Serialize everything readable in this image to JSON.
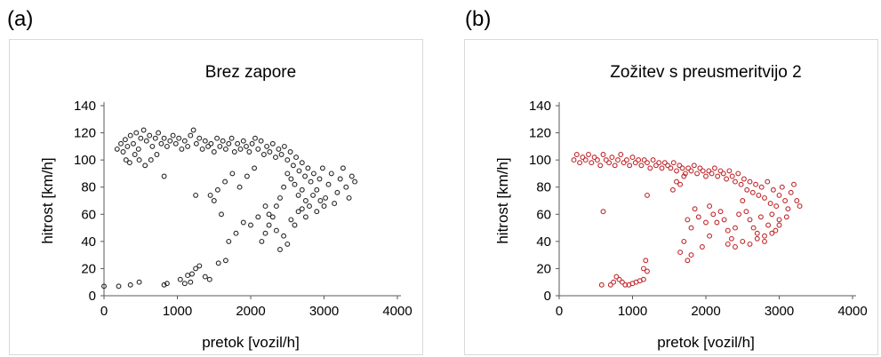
{
  "panels": [
    {
      "letter": "(a)"
    },
    {
      "letter": "(b)"
    }
  ],
  "chart_data": [
    {
      "type": "scatter",
      "title": "Brez zapore",
      "xlabel": "pretok [vozil/h]",
      "ylabel": "hitrost [km/h]",
      "xlim": [
        0,
        4000
      ],
      "ylim": [
        0,
        140
      ],
      "xticks": [
        0,
        1000,
        2000,
        3000,
        4000
      ],
      "yticks": [
        0,
        20,
        40,
        60,
        80,
        100,
        120,
        140
      ],
      "grid": false,
      "color": "#262626",
      "points": [
        [
          180,
          108
        ],
        [
          230,
          112
        ],
        [
          260,
          106
        ],
        [
          290,
          115
        ],
        [
          320,
          110
        ],
        [
          360,
          118
        ],
        [
          400,
          112
        ],
        [
          440,
          120
        ],
        [
          470,
          108
        ],
        [
          500,
          116
        ],
        [
          540,
          122
        ],
        [
          580,
          114
        ],
        [
          620,
          118
        ],
        [
          660,
          110
        ],
        [
          700,
          116
        ],
        [
          740,
          120
        ],
        [
          780,
          112
        ],
        [
          820,
          116
        ],
        [
          860,
          110
        ],
        [
          900,
          114
        ],
        [
          940,
          118
        ],
        [
          980,
          112
        ],
        [
          1020,
          116
        ],
        [
          1060,
          108
        ],
        [
          1100,
          114
        ],
        [
          1140,
          110
        ],
        [
          1180,
          118
        ],
        [
          1220,
          122
        ],
        [
          1260,
          112
        ],
        [
          1300,
          116
        ],
        [
          1340,
          108
        ],
        [
          1380,
          114
        ],
        [
          1420,
          110
        ],
        [
          1460,
          112
        ],
        [
          1500,
          106
        ],
        [
          1540,
          116
        ],
        [
          1580,
          110
        ],
        [
          1620,
          114
        ],
        [
          1660,
          108
        ],
        [
          1700,
          112
        ],
        [
          1740,
          116
        ],
        [
          1780,
          106
        ],
        [
          1820,
          112
        ],
        [
          1860,
          108
        ],
        [
          1900,
          114
        ],
        [
          1940,
          110
        ],
        [
          1980,
          106
        ],
        [
          2020,
          112
        ],
        [
          2060,
          116
        ],
        [
          2100,
          108
        ],
        [
          2140,
          114
        ],
        [
          2180,
          104
        ],
        [
          2220,
          110
        ],
        [
          2260,
          106
        ],
        [
          2300,
          112
        ],
        [
          2340,
          102
        ],
        [
          2380,
          108
        ],
        [
          2420,
          104
        ],
        [
          2460,
          110
        ],
        [
          2500,
          100
        ],
        [
          2540,
          106
        ],
        [
          2580,
          96
        ],
        [
          2620,
          102
        ],
        [
          2660,
          92
        ],
        [
          2700,
          98
        ],
        [
          2740,
          88
        ],
        [
          2780,
          94
        ],
        [
          2820,
          84
        ],
        [
          2860,
          90
        ],
        [
          2900,
          78
        ],
        [
          2940,
          86
        ],
        [
          2980,
          94
        ],
        [
          3020,
          72
        ],
        [
          3060,
          82
        ],
        [
          3100,
          90
        ],
        [
          3140,
          68
        ],
        [
          3180,
          76
        ],
        [
          3220,
          86
        ],
        [
          3260,
          94
        ],
        [
          3300,
          80
        ],
        [
          3340,
          72
        ],
        [
          3380,
          88
        ],
        [
          3420,
          84
        ],
        [
          2700,
          78
        ],
        [
          2750,
          70
        ],
        [
          2800,
          66
        ],
        [
          2850,
          74
        ],
        [
          2900,
          62
        ],
        [
          2950,
          70
        ],
        [
          3000,
          66
        ],
        [
          2600,
          82
        ],
        [
          2650,
          74
        ],
        [
          2550,
          86
        ],
        [
          2500,
          90
        ],
        [
          2450,
          80
        ],
        [
          2400,
          72
        ],
        [
          2350,
          66
        ],
        [
          2300,
          58
        ],
        [
          2250,
          52
        ],
        [
          2200,
          46
        ],
        [
          2150,
          40
        ],
        [
          2250,
          60
        ],
        [
          2350,
          48
        ],
        [
          2450,
          44
        ],
        [
          2550,
          56
        ],
        [
          2650,
          62
        ],
        [
          2750,
          58
        ],
        [
          2500,
          38
        ],
        [
          2400,
          34
        ],
        [
          2600,
          52
        ],
        [
          2700,
          64
        ],
        [
          2200,
          66
        ],
        [
          2100,
          58
        ],
        [
          2000,
          52
        ],
        [
          1900,
          54
        ],
        [
          1800,
          46
        ],
        [
          1700,
          40
        ],
        [
          1600,
          60
        ],
        [
          1500,
          70
        ],
        [
          1450,
          74
        ],
        [
          1650,
          84
        ],
        [
          1750,
          90
        ],
        [
          1850,
          80
        ],
        [
          1950,
          88
        ],
        [
          2050,
          94
        ],
        [
          1550,
          78
        ],
        [
          1250,
          74
        ],
        [
          820,
          88
        ],
        [
          300,
          100
        ],
        [
          350,
          98
        ],
        [
          420,
          104
        ],
        [
          480,
          100
        ],
        [
          560,
          96
        ],
        [
          640,
          100
        ],
        [
          720,
          104
        ],
        [
          0,
          7
        ],
        [
          200,
          7
        ],
        [
          360,
          8
        ],
        [
          480,
          10
        ],
        [
          820,
          8
        ],
        [
          860,
          9
        ],
        [
          1040,
          12
        ],
        [
          1100,
          9
        ],
        [
          1140,
          15
        ],
        [
          1200,
          16
        ],
        [
          1250,
          20
        ],
        [
          1300,
          22
        ],
        [
          1380,
          14
        ],
        [
          1440,
          12
        ],
        [
          1560,
          24
        ],
        [
          1660,
          26
        ],
        [
          1180,
          10
        ]
      ]
    },
    {
      "type": "scatter",
      "title": "Zožitev s preusmeritvijo 2",
      "xlabel": "pretok [vozil/h]",
      "ylabel": "hitrost [km/h]",
      "xlim": [
        0,
        4000
      ],
      "ylim": [
        0,
        140
      ],
      "xticks": [
        0,
        1000,
        2000,
        3000,
        4000
      ],
      "yticks": [
        0,
        20,
        40,
        60,
        80,
        100,
        120,
        140
      ],
      "grid": false,
      "color": "#c0282c",
      "points": [
        [
          200,
          100
        ],
        [
          240,
          104
        ],
        [
          280,
          98
        ],
        [
          320,
          102
        ],
        [
          360,
          100
        ],
        [
          400,
          104
        ],
        [
          440,
          98
        ],
        [
          480,
          102
        ],
        [
          520,
          100
        ],
        [
          560,
          96
        ],
        [
          600,
          104
        ],
        [
          640,
          100
        ],
        [
          680,
          98
        ],
        [
          720,
          102
        ],
        [
          760,
          96
        ],
        [
          800,
          100
        ],
        [
          840,
          104
        ],
        [
          880,
          98
        ],
        [
          920,
          100
        ],
        [
          960,
          96
        ],
        [
          1000,
          102
        ],
        [
          1040,
          98
        ],
        [
          1080,
          100
        ],
        [
          1120,
          96
        ],
        [
          1160,
          100
        ],
        [
          1200,
          98
        ],
        [
          1240,
          94
        ],
        [
          1280,
          100
        ],
        [
          1320,
          96
        ],
        [
          1360,
          98
        ],
        [
          1400,
          94
        ],
        [
          1440,
          98
        ],
        [
          1480,
          96
        ],
        [
          1520,
          94
        ],
        [
          1560,
          98
        ],
        [
          1600,
          92
        ],
        [
          1640,
          96
        ],
        [
          1680,
          94
        ],
        [
          1720,
          90
        ],
        [
          1760,
          94
        ],
        [
          1800,
          92
        ],
        [
          1840,
          96
        ],
        [
          1880,
          90
        ],
        [
          1920,
          94
        ],
        [
          1960,
          92
        ],
        [
          2000,
          88
        ],
        [
          2040,
          92
        ],
        [
          2080,
          90
        ],
        [
          2120,
          94
        ],
        [
          2160,
          88
        ],
        [
          2200,
          92
        ],
        [
          2240,
          90
        ],
        [
          2280,
          86
        ],
        [
          2320,
          92
        ],
        [
          2360,
          88
        ],
        [
          2400,
          84
        ],
        [
          2440,
          90
        ],
        [
          2480,
          82
        ],
        [
          2520,
          86
        ],
        [
          2560,
          78
        ],
        [
          2600,
          84
        ],
        [
          2640,
          76
        ],
        [
          2680,
          82
        ],
        [
          2720,
          74
        ],
        [
          2760,
          80
        ],
        [
          2800,
          72
        ],
        [
          2840,
          84
        ],
        [
          2880,
          68
        ],
        [
          2920,
          78
        ],
        [
          2960,
          66
        ],
        [
          3000,
          74
        ],
        [
          3040,
          80
        ],
        [
          3080,
          70
        ],
        [
          3120,
          64
        ],
        [
          3160,
          76
        ],
        [
          3200,
          82
        ],
        [
          3240,
          70
        ],
        [
          3280,
          66
        ],
        [
          2500,
          70
        ],
        [
          2550,
          62
        ],
        [
          2600,
          56
        ],
        [
          2650,
          50
        ],
        [
          2700,
          46
        ],
        [
          2750,
          58
        ],
        [
          2800,
          44
        ],
        [
          2850,
          52
        ],
        [
          2900,
          60
        ],
        [
          2950,
          48
        ],
        [
          3000,
          56
        ],
        [
          2450,
          60
        ],
        [
          2400,
          50
        ],
        [
          2350,
          42
        ],
        [
          2300,
          48
        ],
        [
          2250,
          56
        ],
        [
          2200,
          62
        ],
        [
          2150,
          54
        ],
        [
          2100,
          60
        ],
        [
          2050,
          66
        ],
        [
          2500,
          40
        ],
        [
          2600,
          38
        ],
        [
          2700,
          42
        ],
        [
          2800,
          40
        ],
        [
          2900,
          46
        ],
        [
          3000,
          52
        ],
        [
          3100,
          58
        ],
        [
          2400,
          36
        ],
        [
          2300,
          38
        ],
        [
          2000,
          54
        ],
        [
          1900,
          58
        ],
        [
          1850,
          64
        ],
        [
          1800,
          50
        ],
        [
          1750,
          56
        ],
        [
          1700,
          40
        ],
        [
          1650,
          32
        ],
        [
          1750,
          26
        ],
        [
          1800,
          30
        ],
        [
          1950,
          36
        ],
        [
          2050,
          44
        ],
        [
          1550,
          78
        ],
        [
          1600,
          84
        ],
        [
          1650,
          82
        ],
        [
          1700,
          88
        ],
        [
          1200,
          74
        ],
        [
          1180,
          26
        ],
        [
          1200,
          18
        ],
        [
          1150,
          12
        ],
        [
          1100,
          11
        ],
        [
          1050,
          10
        ],
        [
          1000,
          9
        ],
        [
          950,
          8
        ],
        [
          900,
          8
        ],
        [
          860,
          10
        ],
        [
          820,
          12
        ],
        [
          780,
          14
        ],
        [
          740,
          10
        ],
        [
          700,
          8
        ],
        [
          600,
          62
        ],
        [
          580,
          8
        ],
        [
          1150,
          20
        ]
      ]
    }
  ]
}
